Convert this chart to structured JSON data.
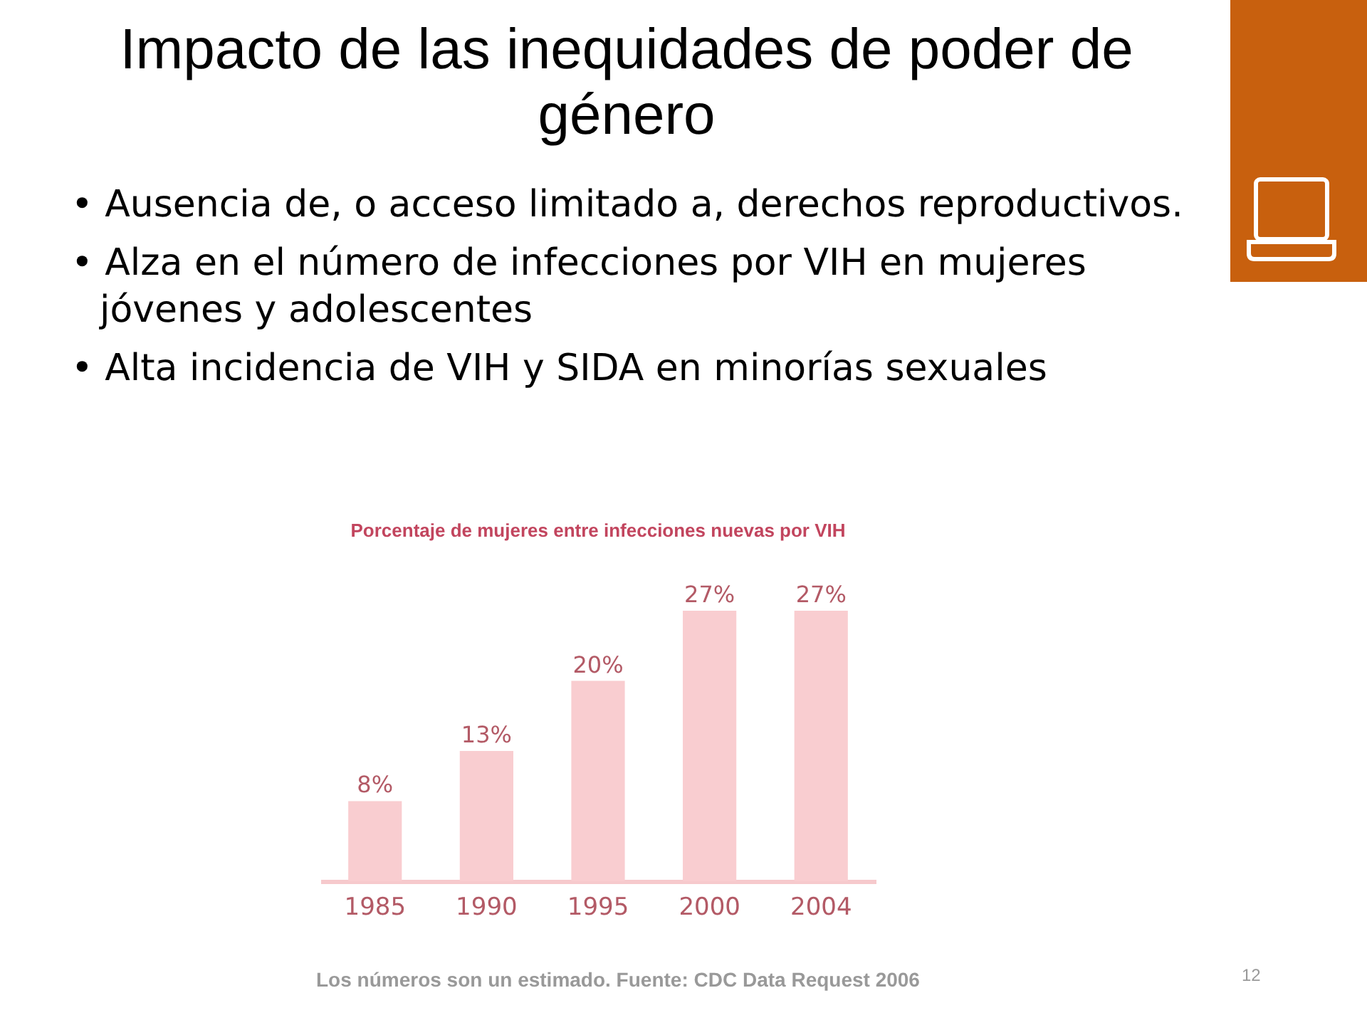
{
  "chart_data": {
    "type": "bar",
    "title": "Impacto de las inequidades de poder de género",
    "subtitle": "Porcentaje de mujeres entre infecciones nuevas por VIH",
    "annotations": [
      "• Ausencia de, o acceso limitado a, derechos reproductivos.",
      "• Alza en el número de infecciones por VIH en mujeres jóvenes y adolescentes",
      "• Alta incidencia de VIH y SIDA en minorías sexuales",
      "Los números son un estimado.  Fuente:  CDC Data Request 2006",
      "12"
    ],
    "categories": [
      "1985",
      "1990",
      "1995",
      "2000",
      "2004"
    ],
    "values": [
      8,
      13,
      20,
      27,
      27
    ],
    "value_labels": [
      "8%",
      "13%",
      "20%",
      "27%",
      "27%"
    ],
    "color": "#f9cdd0",
    "tick_labels": "x"
  }
}
